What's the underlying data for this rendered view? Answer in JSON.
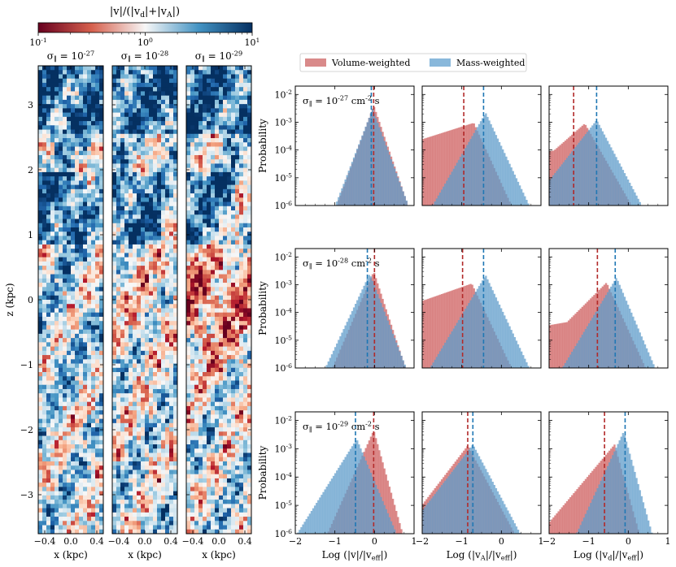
{
  "colorbar": {
    "label": "|v|/(|v_d|+|v_A|)",
    "tick_labels": [
      "10^{-1}",
      "10^{0}",
      "10^{1}"
    ],
    "colormap": "RdBu",
    "color_low": "#67001f",
    "color_mid": "#f7f7f7",
    "color_high": "#053061"
  },
  "maps": {
    "titles": [
      "σ_∥ = 10^{-27}",
      "σ_∥ = 10^{-28}",
      "σ_∥ = 10^{-29}"
    ],
    "xlabel": "x (kpc)",
    "ylabel": "z (kpc)",
    "x_tick_labels": [
      "−0.4",
      "0.0",
      "0.4"
    ],
    "z_tick_labels": [
      "3",
      "2",
      "1",
      "0",
      "−1",
      "−2",
      "−3"
    ]
  },
  "legend": {
    "items": [
      {
        "label": "Volume-weighted",
        "color": "#d98a8a"
      },
      {
        "label": "Mass-weighted",
        "color": "#89b8db"
      }
    ]
  },
  "histograms": {
    "ylabel": "Probability",
    "row_labels": [
      "σ_∥ = 10^{-27} cm^{-2} s",
      "σ_∥ = 10^{-28} cm^{-2} s",
      "σ_∥ = 10^{-29} cm^{-2} s"
    ],
    "xlabels": [
      "Log (|v|/|v_eff|)",
      "Log (|v_A|/|v_eff|)",
      "Log (|v_d|/|v_eff|)"
    ],
    "x_tick_labels": [
      "−2",
      "−1",
      "0",
      "1"
    ],
    "y_tick_labels": [
      "10^{-2}",
      "10^{-3}",
      "10^{-4}",
      "10^{-5}",
      "10^{-6}"
    ]
  },
  "chart_data": [
    {
      "type": "heatmap",
      "title": "σ_∥ = 10^{-27}",
      "xlabel": "x (kpc)",
      "ylabel": "z (kpc)",
      "xlim": [
        -0.5,
        0.5
      ],
      "ylim": [
        -3.6,
        3.6
      ],
      "clim": [
        0.1,
        10
      ],
      "scale": "log"
    },
    {
      "type": "heatmap",
      "title": "σ_∥ = 10^{-28}",
      "xlabel": "x (kpc)",
      "xlim": [
        -0.5,
        0.5
      ],
      "ylim": [
        -3.6,
        3.6
      ],
      "clim": [
        0.1,
        10
      ],
      "scale": "log"
    },
    {
      "type": "heatmap",
      "title": "σ_∥ = 10^{-29}",
      "xlabel": "x (kpc)",
      "xlim": [
        -0.5,
        0.5
      ],
      "ylim": [
        -3.6,
        3.6
      ],
      "clim": [
        0.1,
        10
      ],
      "scale": "log"
    },
    {
      "type": "bar",
      "row": 0,
      "col": 0,
      "xlim": [
        -2,
        1
      ],
      "ylim": [
        1e-06,
        0.02
      ],
      "yscale": "log",
      "series": [
        {
          "name": "Volume-weighted",
          "median": -0.02,
          "peak_x": -0.02,
          "peak_y": 0.004,
          "sigma_left": 0.26,
          "sigma_right": 0.24,
          "tail": 0
        },
        {
          "name": "Mass-weighted",
          "median": -0.08,
          "peak_x": -0.05,
          "peak_y": 0.003,
          "sigma_left": 0.27,
          "sigma_right": 0.26,
          "tail": 0
        }
      ]
    },
    {
      "type": "bar",
      "row": 0,
      "col": 1,
      "xlim": [
        -2,
        1
      ],
      "ylim": [
        1e-06,
        0.02
      ],
      "yscale": "log",
      "series": [
        {
          "name": "Volume-weighted",
          "median": -0.95,
          "peak_x": -0.7,
          "peak_y": 0.00095,
          "sigma_left": 2.2,
          "sigma_right": 0.32,
          "tail": 9e-05
        },
        {
          "name": "Mass-weighted",
          "median": -0.45,
          "peak_x": -0.4,
          "peak_y": 0.0022,
          "sigma_left": 0.4,
          "sigma_right": 0.33,
          "tail": 0
        }
      ]
    },
    {
      "type": "bar",
      "row": 0,
      "col": 2,
      "xlim": [
        -2,
        1
      ],
      "ylim": [
        1e-06,
        0.02
      ],
      "yscale": "log",
      "series": [
        {
          "name": "Volume-weighted",
          "median": -1.38,
          "peak_x": -1.1,
          "peak_y": 0.0009,
          "sigma_left": 0.8,
          "sigma_right": 0.4,
          "tail": 0.00015
        },
        {
          "name": "Mass-weighted",
          "median": -0.8,
          "peak_x": -0.8,
          "peak_y": 0.0012,
          "sigma_left": 0.55,
          "sigma_right": 0.37,
          "tail": 0
        }
      ]
    },
    {
      "type": "bar",
      "row": 1,
      "col": 0,
      "xlim": [
        -2,
        1
      ],
      "ylim": [
        1e-06,
        0.02
      ],
      "yscale": "log",
      "series": [
        {
          "name": "Volume-weighted",
          "median": 0.0,
          "peak_x": -0.02,
          "peak_y": 0.003,
          "sigma_left": 0.3,
          "sigma_right": 0.23,
          "tail": 0
        },
        {
          "name": "Mass-weighted",
          "median": -0.18,
          "peak_x": -0.12,
          "peak_y": 0.0025,
          "sigma_left": 0.33,
          "sigma_right": 0.27,
          "tail": 0
        }
      ]
    },
    {
      "type": "bar",
      "row": 1,
      "col": 1,
      "xlim": [
        -2,
        1
      ],
      "ylim": [
        1e-06,
        0.02
      ],
      "yscale": "log",
      "series": [
        {
          "name": "Volume-weighted",
          "median": -0.98,
          "peak_x": -0.75,
          "peak_y": 0.0011,
          "sigma_left": 2.0,
          "sigma_right": 0.33,
          "tail": 0.0001
        },
        {
          "name": "Mass-weighted",
          "median": -0.45,
          "peak_x": -0.4,
          "peak_y": 0.0022,
          "sigma_left": 0.42,
          "sigma_right": 0.33,
          "tail": 0
        }
      ]
    },
    {
      "type": "bar",
      "row": 1,
      "col": 2,
      "xlim": [
        -2,
        1
      ],
      "ylim": [
        1e-06,
        0.02
      ],
      "yscale": "log",
      "series": [
        {
          "name": "Volume-weighted",
          "median": -0.78,
          "peak_x": -0.55,
          "peak_y": 0.0012,
          "sigma_left": 0.7,
          "sigma_right": 0.32,
          "tail": 8e-05
        },
        {
          "name": "Mass-weighted",
          "median": -0.33,
          "peak_x": -0.3,
          "peak_y": 0.0018,
          "sigma_left": 0.42,
          "sigma_right": 0.3,
          "tail": 0
        }
      ]
    },
    {
      "type": "bar",
      "row": 2,
      "col": 0,
      "xlim": [
        -2,
        1
      ],
      "ylim": [
        1e-06,
        0.02
      ],
      "yscale": "log",
      "series": [
        {
          "name": "Volume-weighted",
          "median": -0.02,
          "peak_x": -0.02,
          "peak_y": 0.0045,
          "sigma_left": 0.32,
          "sigma_right": 0.2,
          "tail": 0
        },
        {
          "name": "Mass-weighted",
          "median": -0.48,
          "peak_x": -0.45,
          "peak_y": 0.0022,
          "sigma_left": 0.45,
          "sigma_right": 0.3,
          "tail": 0
        }
      ]
    },
    {
      "type": "bar",
      "row": 2,
      "col": 1,
      "xlim": [
        -2,
        1
      ],
      "ylim": [
        1e-06,
        0.02
      ],
      "yscale": "log",
      "series": [
        {
          "name": "Volume-weighted",
          "median": -0.85,
          "peak_x": -0.85,
          "peak_y": 0.0013,
          "sigma_left": 0.55,
          "sigma_right": 0.38,
          "tail": 0
        },
        {
          "name": "Mass-weighted",
          "median": -0.72,
          "peak_x": -0.72,
          "peak_y": 0.0014,
          "sigma_left": 0.55,
          "sigma_right": 0.38,
          "tail": 0
        }
      ]
    },
    {
      "type": "bar",
      "row": 2,
      "col": 2,
      "xlim": [
        -2,
        1
      ],
      "ylim": [
        1e-06,
        0.02
      ],
      "yscale": "log",
      "series": [
        {
          "name": "Volume-weighted",
          "median": -0.6,
          "peak_x": -0.35,
          "peak_y": 0.0014,
          "sigma_left": 0.6,
          "sigma_right": 0.2,
          "tail": 0
        },
        {
          "name": "Mass-weighted",
          "median": -0.08,
          "peak_x": -0.12,
          "peak_y": 0.004,
          "sigma_left": 0.33,
          "sigma_right": 0.2,
          "tail": 0
        }
      ]
    }
  ]
}
